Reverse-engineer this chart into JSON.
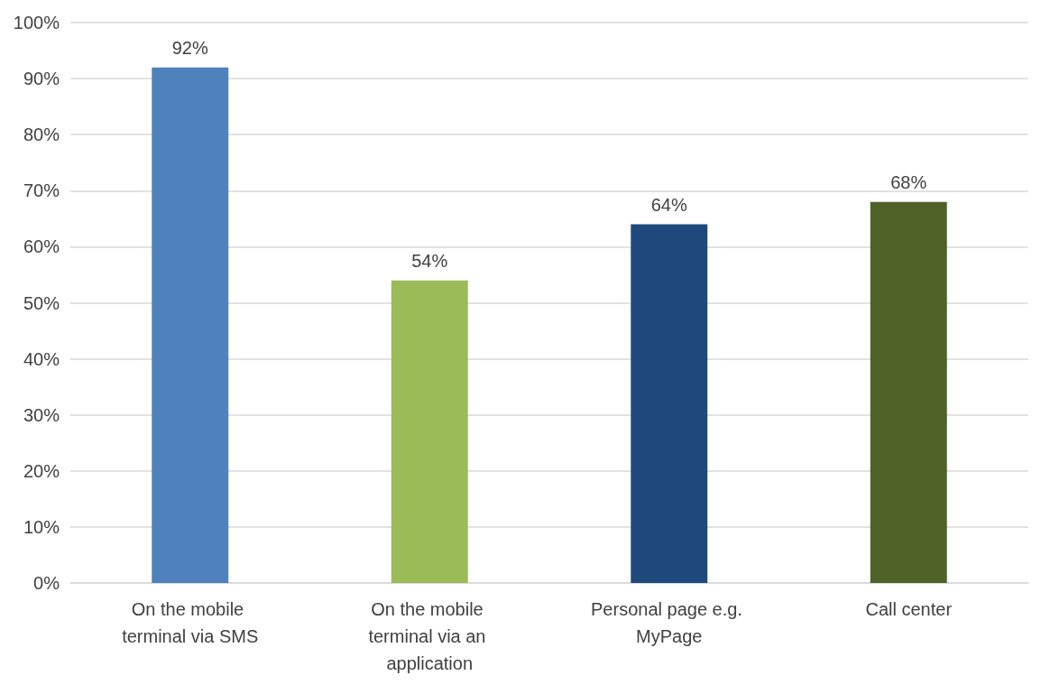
{
  "chart_data": {
    "type": "bar",
    "categories": [
      "On the mobile terminal via SMS",
      "On the mobile terminal via an application",
      "Personal page e.g. MyPage",
      "Call center"
    ],
    "values": [
      92,
      54,
      64,
      68
    ],
    "colors": [
      "#4f81bd",
      "#9bbb59",
      "#1f497d",
      "#4f6228"
    ],
    "value_labels": [
      "92%",
      "54%",
      "64%",
      "68%"
    ],
    "ylim": [
      0,
      100
    ],
    "yticks": [
      {
        "value": 0,
        "label": "0%"
      },
      {
        "value": 10,
        "label": "10%"
      },
      {
        "value": 20,
        "label": "20%"
      },
      {
        "value": 30,
        "label": "30%"
      },
      {
        "value": 40,
        "label": "40%"
      },
      {
        "value": 50,
        "label": "50%"
      },
      {
        "value": 60,
        "label": "60%"
      },
      {
        "value": 70,
        "label": "70%"
      },
      {
        "value": 80,
        "label": "80%"
      },
      {
        "value": 90,
        "label": "90%"
      },
      {
        "value": 100,
        "label": "100%"
      }
    ],
    "grid": "y"
  }
}
